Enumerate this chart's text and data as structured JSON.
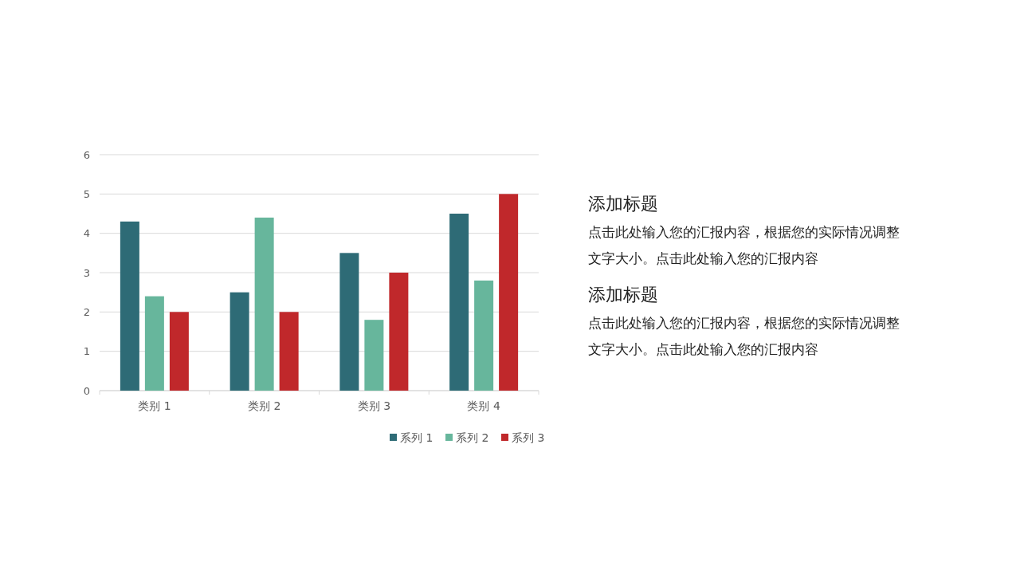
{
  "chart_data": {
    "type": "bar",
    "categories": [
      "类别 1",
      "类别 2",
      "类别 3",
      "类别 4"
    ],
    "series": [
      {
        "name": "系列 1",
        "color": "#2e6b76",
        "values": [
          4.3,
          2.5,
          3.5,
          4.5
        ]
      },
      {
        "name": "系列 2",
        "color": "#67b69c",
        "values": [
          2.4,
          4.4,
          1.8,
          2.8
        ]
      },
      {
        "name": "系列 3",
        "color": "#c0282b",
        "values": [
          2,
          2,
          3,
          5
        ]
      }
    ],
    "ylim": [
      0,
      6
    ],
    "yticks": [
      0,
      1,
      2,
      3,
      4,
      5,
      6
    ],
    "grid": "y",
    "legend": "bottom right",
    "annotations": [
      "添加标题",
      "点击此处输入您的汇报内容，根据您的实际情况调整文字大小。点击此处输入您的汇报内容",
      "添加标题",
      "点击此处输入您的汇报内容，根据您的实际情况调整文字大小。点击此处输入您的汇报内容"
    ]
  }
}
